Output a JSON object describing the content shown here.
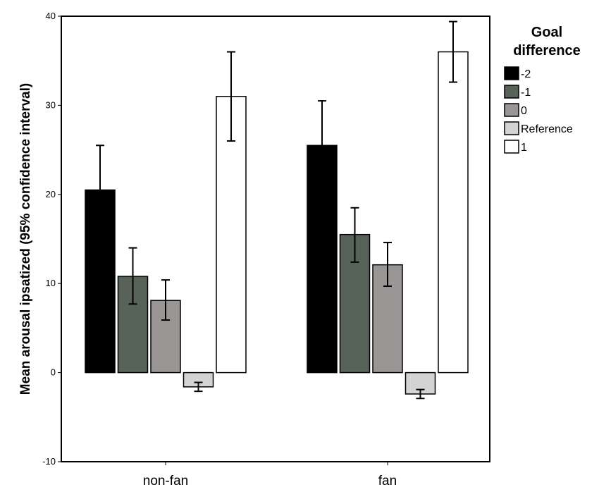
{
  "chart_data": {
    "type": "bar",
    "title": "",
    "xlabel": "",
    "ylabel": "Mean arousal ipsatized (95% confidence interval)",
    "ylim": [
      -10,
      40
    ],
    "yticks": [
      -10,
      0,
      10,
      20,
      30,
      40
    ],
    "grid": false,
    "legend_position": "right",
    "legend_title": "Goal difference",
    "categories": [
      "non-fan",
      "fan"
    ],
    "series": [
      {
        "name": "-2",
        "color": "#000000",
        "values": [
          20.5,
          25.5
        ],
        "ci_low": [
          16.0,
          20.5
        ],
        "ci_high": [
          25.5,
          30.5
        ]
      },
      {
        "name": "-1",
        "color": "#576259",
        "values": [
          10.8,
          15.5
        ],
        "ci_low": [
          7.7,
          12.4
        ],
        "ci_high": [
          14.0,
          18.5
        ]
      },
      {
        "name": "0",
        "color": "#9a9696",
        "values": [
          8.1,
          12.1
        ],
        "ci_low": [
          5.9,
          9.7
        ],
        "ci_high": [
          10.4,
          14.6
        ]
      },
      {
        "name": "Reference",
        "color": "#d3d3d3",
        "values": [
          -1.6,
          -2.4
        ],
        "ci_low": [
          -2.1,
          -2.9
        ],
        "ci_high": [
          -1.1,
          -1.9
        ]
      },
      {
        "name": "1",
        "color": "#ffffff",
        "values": [
          31.0,
          36.0
        ],
        "ci_low": [
          26.0,
          32.6
        ],
        "ci_high": [
          36.0,
          39.4
        ]
      }
    ]
  }
}
